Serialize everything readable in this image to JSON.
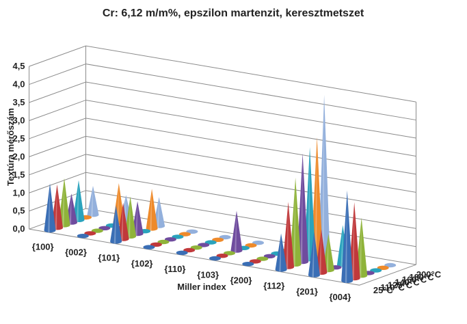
{
  "chart_data": {
    "type": "3d-cone",
    "title": "Cr: 6,12 m/m%, epszilon martenzit, keresztmetszet",
    "xlabel": "Miller index",
    "ylabel": "Textúra mérőszám",
    "ylim": [
      0,
      4.5
    ],
    "yticks": [
      "0,0",
      "0,5",
      "1,0",
      "1,5",
      "2,0",
      "2,5",
      "3,0",
      "3,5",
      "4,0",
      "4,5"
    ],
    "categories": [
      "{100}",
      "{002}",
      "{101}",
      "{102}",
      "{110}",
      "{103}",
      "{200}",
      "{112}",
      "{201}",
      "{004}"
    ],
    "series": [
      {
        "name": "25°C",
        "color": "#3a6eb5",
        "values": [
          1.3,
          0.1,
          1.0,
          0.1,
          0.1,
          0.1,
          0.1,
          1.0,
          1.2,
          2.5
        ]
      },
      {
        "name": "110°C",
        "color": "#c0393b",
        "values": [
          1.2,
          0.1,
          1.0,
          0.1,
          0.1,
          0.1,
          0.1,
          1.8,
          1.2,
          2.1
        ]
      },
      {
        "name": "125°C",
        "color": "#8fb33a",
        "values": [
          1.3,
          0.1,
          1.1,
          0.1,
          0.1,
          0.1,
          0.1,
          2.4,
          1.0,
          1.6
        ]
      },
      {
        "name": "140°C",
        "color": "#6f4c9e",
        "values": [
          0.8,
          0.1,
          0.9,
          0.1,
          0.1,
          1.1,
          0.1,
          3.0,
          0.1,
          0.1
        ]
      },
      {
        "name": "160°C",
        "color": "#2aa3bd",
        "values": [
          1.1,
          0.1,
          0.1,
          0.1,
          0.1,
          0.1,
          0.1,
          3.1,
          1.1,
          0.1
        ]
      },
      {
        "name": "180°C",
        "color": "#ee8a2b",
        "values": [
          0.1,
          1.1,
          1.1,
          0.1,
          0.1,
          0.1,
          0.1,
          3.3,
          0.1,
          0.1
        ]
      },
      {
        "name": "200°C",
        "color": "#93b0dc",
        "values": [
          0.8,
          0.7,
          0.8,
          0.1,
          0.1,
          0.1,
          0.1,
          4.4,
          0.1,
          0.1
        ]
      }
    ],
    "grid": true,
    "legend": "depth-axis labels"
  }
}
